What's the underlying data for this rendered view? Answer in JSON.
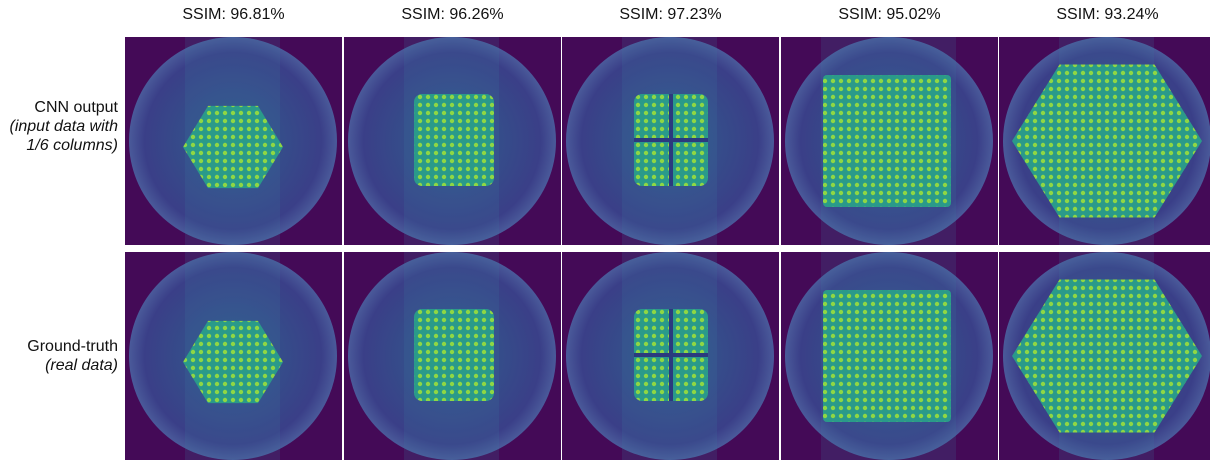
{
  "columns": [
    {
      "header": "SSIM: 96.81%"
    },
    {
      "header": "SSIM: 96.26%"
    },
    {
      "header": "SSIM: 97.23%"
    },
    {
      "header": "SSIM: 95.02%"
    },
    {
      "header": "SSIM: 93.24%"
    }
  ],
  "rows": [
    {
      "label": "CNN output",
      "note": "(input data with 1/6 columns)"
    },
    {
      "label": "Ground-truth",
      "note": "(real data)"
    }
  ]
}
